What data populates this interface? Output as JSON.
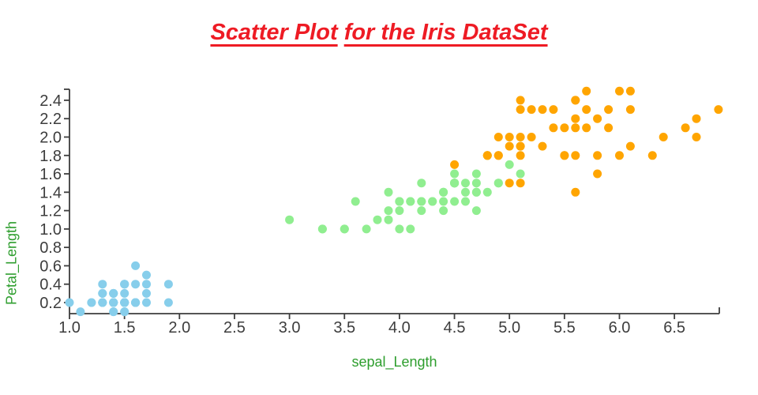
{
  "title": {
    "part1": "Scatter Plot",
    "part2": "for the Iris DataSet",
    "color": "#ee1b24"
  },
  "colors": {
    "background": "#ffffff",
    "axis_line": "#3d3d3d",
    "tick_mark": "#3d3d3d",
    "tick_label": "#3d3d3d",
    "axis_label": "#2e9e2e"
  },
  "chart_data": {
    "type": "scatter",
    "title": "Scatter Plot for the Iris DataSet",
    "xlabel": "sepal_Length",
    "ylabel": "Petal_Length",
    "xlim": [
      1.0,
      6.95
    ],
    "ylim": [
      0.08,
      2.52
    ],
    "x_ticks": [
      1.0,
      1.5,
      2.0,
      2.5,
      3.0,
      3.5,
      4.0,
      4.5,
      5.0,
      5.5,
      6.0,
      6.5
    ],
    "y_ticks": [
      0.2,
      0.4,
      0.6,
      0.8,
      1.0,
      1.2,
      1.4,
      1.6,
      1.8,
      2.0,
      2.2,
      2.4
    ],
    "grid": false,
    "legend": "none",
    "marker_diameter_px": 11,
    "series": [
      {
        "name": "blue-cluster",
        "color": "#87ceeb",
        "points": [
          [
            1.4,
            0.2
          ],
          [
            1.4,
            0.2
          ],
          [
            1.3,
            0.2
          ],
          [
            1.5,
            0.2
          ],
          [
            1.4,
            0.2
          ],
          [
            1.7,
            0.4
          ],
          [
            1.4,
            0.3
          ],
          [
            1.5,
            0.2
          ],
          [
            1.4,
            0.2
          ],
          [
            1.5,
            0.1
          ],
          [
            1.5,
            0.2
          ],
          [
            1.6,
            0.2
          ],
          [
            1.4,
            0.1
          ],
          [
            1.1,
            0.1
          ],
          [
            1.2,
            0.2
          ],
          [
            1.5,
            0.4
          ],
          [
            1.3,
            0.4
          ],
          [
            1.4,
            0.3
          ],
          [
            1.7,
            0.3
          ],
          [
            1.5,
            0.3
          ],
          [
            1.7,
            0.2
          ],
          [
            1.5,
            0.4
          ],
          [
            1.0,
            0.2
          ],
          [
            1.7,
            0.5
          ],
          [
            1.9,
            0.2
          ],
          [
            1.6,
            0.2
          ],
          [
            1.6,
            0.4
          ],
          [
            1.5,
            0.2
          ],
          [
            1.4,
            0.2
          ],
          [
            1.6,
            0.2
          ],
          [
            1.6,
            0.2
          ],
          [
            1.5,
            0.4
          ],
          [
            1.5,
            0.1
          ],
          [
            1.4,
            0.2
          ],
          [
            1.5,
            0.2
          ],
          [
            1.2,
            0.2
          ],
          [
            1.3,
            0.2
          ],
          [
            1.4,
            0.1
          ],
          [
            1.3,
            0.2
          ],
          [
            1.5,
            0.2
          ],
          [
            1.3,
            0.3
          ],
          [
            1.3,
            0.3
          ],
          [
            1.3,
            0.2
          ],
          [
            1.6,
            0.6
          ],
          [
            1.9,
            0.4
          ],
          [
            1.4,
            0.3
          ],
          [
            1.6,
            0.2
          ],
          [
            1.4,
            0.2
          ],
          [
            1.5,
            0.2
          ],
          [
            1.4,
            0.2
          ]
        ]
      },
      {
        "name": "green-cluster",
        "color": "#90ee90",
        "points": [
          [
            4.7,
            1.4
          ],
          [
            4.5,
            1.5
          ],
          [
            4.9,
            1.5
          ],
          [
            4.0,
            1.3
          ],
          [
            4.6,
            1.5
          ],
          [
            4.5,
            1.3
          ],
          [
            4.7,
            1.6
          ],
          [
            3.3,
            1.0
          ],
          [
            4.6,
            1.3
          ],
          [
            3.9,
            1.4
          ],
          [
            3.5,
            1.0
          ],
          [
            4.2,
            1.5
          ],
          [
            4.0,
            1.0
          ],
          [
            4.7,
            1.4
          ],
          [
            3.6,
            1.3
          ],
          [
            4.4,
            1.4
          ],
          [
            4.5,
            1.5
          ],
          [
            4.1,
            1.0
          ],
          [
            4.5,
            1.5
          ],
          [
            3.9,
            1.1
          ],
          [
            4.8,
            1.8
          ],
          [
            4.0,
            1.3
          ],
          [
            4.9,
            1.5
          ],
          [
            4.7,
            1.2
          ],
          [
            4.3,
            1.3
          ],
          [
            4.4,
            1.4
          ],
          [
            4.8,
            1.4
          ],
          [
            5.0,
            1.7
          ],
          [
            4.5,
            1.5
          ],
          [
            3.5,
            1.0
          ],
          [
            3.8,
            1.1
          ],
          [
            3.7,
            1.0
          ],
          [
            3.9,
            1.2
          ],
          [
            5.1,
            1.6
          ],
          [
            4.5,
            1.5
          ],
          [
            4.5,
            1.6
          ],
          [
            4.7,
            1.5
          ],
          [
            4.4,
            1.3
          ],
          [
            4.1,
            1.3
          ],
          [
            4.0,
            1.3
          ],
          [
            4.4,
            1.2
          ],
          [
            4.6,
            1.4
          ],
          [
            4.0,
            1.2
          ],
          [
            3.3,
            1.0
          ],
          [
            4.2,
            1.3
          ],
          [
            4.2,
            1.2
          ],
          [
            4.2,
            1.3
          ],
          [
            4.3,
            1.3
          ],
          [
            3.0,
            1.1
          ],
          [
            4.1,
            1.3
          ]
        ]
      },
      {
        "name": "orange-cluster",
        "color": "#ffa500",
        "points": [
          [
            6.0,
            2.5
          ],
          [
            5.1,
            1.9
          ],
          [
            5.9,
            2.1
          ],
          [
            5.6,
            1.8
          ],
          [
            5.8,
            2.2
          ],
          [
            6.6,
            2.1
          ],
          [
            4.5,
            1.7
          ],
          [
            6.3,
            1.8
          ],
          [
            5.8,
            1.8
          ],
          [
            6.1,
            2.5
          ],
          [
            5.1,
            2.0
          ],
          [
            5.3,
            1.9
          ],
          [
            5.5,
            2.1
          ],
          [
            5.0,
            2.0
          ],
          [
            5.1,
            2.4
          ],
          [
            5.3,
            2.3
          ],
          [
            5.5,
            1.8
          ],
          [
            6.7,
            2.2
          ],
          [
            6.9,
            2.3
          ],
          [
            5.0,
            1.5
          ],
          [
            5.7,
            2.3
          ],
          [
            4.9,
            2.0
          ],
          [
            6.7,
            2.0
          ],
          [
            4.9,
            1.8
          ],
          [
            5.7,
            2.1
          ],
          [
            6.0,
            1.8
          ],
          [
            4.8,
            1.8
          ],
          [
            4.9,
            1.8
          ],
          [
            5.6,
            2.1
          ],
          [
            5.8,
            1.6
          ],
          [
            6.1,
            1.9
          ],
          [
            6.4,
            2.0
          ],
          [
            5.6,
            2.2
          ],
          [
            5.1,
            1.5
          ],
          [
            5.6,
            1.4
          ],
          [
            6.1,
            2.3
          ],
          [
            5.6,
            2.4
          ],
          [
            5.5,
            1.8
          ],
          [
            4.8,
            1.8
          ],
          [
            5.4,
            2.1
          ],
          [
            5.6,
            2.4
          ],
          [
            5.1,
            2.3
          ],
          [
            5.1,
            1.9
          ],
          [
            5.9,
            2.3
          ],
          [
            5.7,
            2.5
          ],
          [
            5.2,
            2.3
          ],
          [
            5.0,
            1.9
          ],
          [
            5.2,
            2.0
          ],
          [
            5.4,
            2.3
          ],
          [
            5.1,
            1.8
          ]
        ]
      }
    ]
  }
}
